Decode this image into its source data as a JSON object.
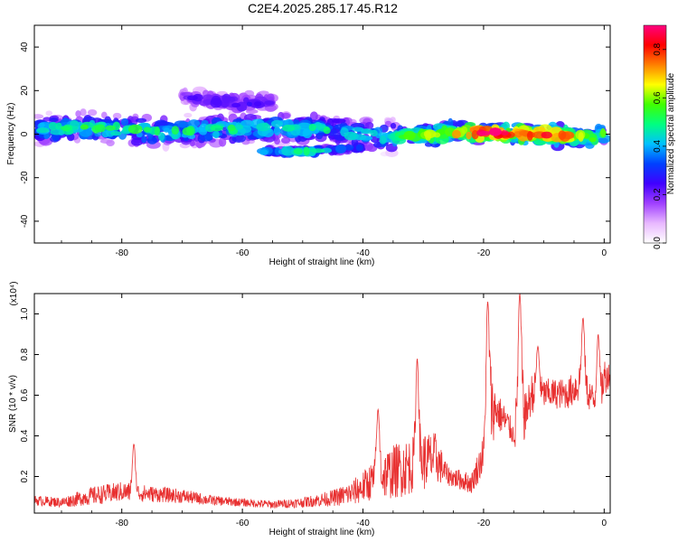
{
  "title": "C2E4.2025.285.17.45.R12",
  "chart_data": [
    {
      "type": "heatmap",
      "xlabel": "Height of straight line (km)",
      "ylabel": "Frequency (Hz)",
      "xlim": [
        -94.5,
        1
      ],
      "ylim": [
        -50,
        50
      ],
      "xticks": [
        -80,
        -60,
        -40,
        -20,
        0
      ],
      "yticks": [
        -40,
        -20,
        0,
        20,
        40
      ],
      "xtick_labels": [
        "-80",
        "-60",
        "-40",
        "-20",
        "0"
      ],
      "ytick_labels": [
        "-40",
        "-20",
        "0",
        "20",
        "40"
      ],
      "colorbar": {
        "label": "Normalized spectral amplitude",
        "range": [
          0,
          0.9
        ],
        "ticks": [
          0.0,
          0.2,
          0.4,
          0.6,
          0.8
        ],
        "tick_labels": [
          "0.0",
          "0.2",
          "0.4",
          "0.6",
          "0.8"
        ],
        "colormap": [
          "#ffffff",
          "#e8b8ff",
          "#a040ff",
          "#4000ff",
          "#0040ff",
          "#00c0ff",
          "#00ff80",
          "#40ff00",
          "#ffff00",
          "#ff8000",
          "#ff0000",
          "#ff0080"
        ]
      },
      "ridges": [
        {
          "name": "main band",
          "x": [
            -94,
            -85,
            -75,
            -65,
            -55,
            -45,
            -40,
            -35,
            -30,
            -25,
            -20,
            -15,
            -10,
            -5,
            -2,
            0
          ],
          "y": [
            2,
            3,
            1,
            2,
            3,
            2,
            0,
            -1,
            -0.5,
            0.5,
            1,
            0.5,
            0,
            -1,
            -2,
            1
          ],
          "spread_hz": 6,
          "amplitude": [
            0.45,
            0.5,
            0.5,
            0.5,
            0.45,
            0.45,
            0.45,
            0.5,
            0.55,
            0.65,
            0.85,
            0.75,
            0.75,
            0.65,
            0.55,
            0.5
          ]
        },
        {
          "name": "lower branch",
          "x": [
            -57,
            -50,
            -44,
            -40
          ],
          "y": [
            -8,
            -8,
            -7,
            -6
          ],
          "spread_hz": 2,
          "amplitude": [
            0.4,
            0.45,
            0.35,
            0.3
          ]
        },
        {
          "name": "upper scatter",
          "x": [
            -70,
            -60,
            -55
          ],
          "y": [
            17,
            14,
            15
          ],
          "spread_hz": 5,
          "amplitude": [
            0.2,
            0.25,
            0.2
          ]
        }
      ]
    },
    {
      "type": "line",
      "xlabel": "Height of straight line (km)",
      "ylabel": "SNR (10 * v/v)",
      "y_multiplier": "(x10⁴)",
      "xlim": [
        -94.5,
        1
      ],
      "ylim": [
        0.02,
        1.1
      ],
      "xticks": [
        -80,
        -60,
        -40,
        -20,
        0
      ],
      "yticks": [
        0.2,
        0.4,
        0.6,
        0.8,
        1.0
      ],
      "xtick_labels": [
        "-80",
        "-60",
        "-40",
        "-20",
        "0"
      ],
      "ytick_labels": [
        "0.2",
        "0.4",
        "0.6",
        "0.8",
        "1.0"
      ],
      "color": "#e83030",
      "envelope": {
        "x": [
          -94.5,
          -90,
          -85,
          -80,
          -75,
          -70,
          -65,
          -60,
          -55,
          -50,
          -45,
          -42,
          -40,
          -38,
          -36,
          -34,
          -32,
          -30,
          -28,
          -26,
          -24,
          -22,
          -20,
          -19,
          -18,
          -16,
          -15,
          -14,
          -13,
          -12,
          -10,
          -8,
          -6,
          -4,
          -2,
          -1,
          0,
          1
        ],
        "mean": [
          0.08,
          0.07,
          0.1,
          0.12,
          0.11,
          0.1,
          0.08,
          0.07,
          0.06,
          0.07,
          0.09,
          0.11,
          0.14,
          0.18,
          0.2,
          0.22,
          0.24,
          0.26,
          0.28,
          0.2,
          0.18,
          0.16,
          0.3,
          0.5,
          0.52,
          0.45,
          0.4,
          0.5,
          0.5,
          0.6,
          0.6,
          0.6,
          0.6,
          0.65,
          0.58,
          0.5,
          0.68,
          0.7
        ],
        "amp": [
          0.05,
          0.05,
          0.09,
          0.1,
          0.08,
          0.07,
          0.05,
          0.04,
          0.04,
          0.05,
          0.08,
          0.12,
          0.16,
          0.2,
          0.25,
          0.28,
          0.28,
          0.3,
          0.25,
          0.1,
          0.1,
          0.1,
          0.2,
          0.5,
          0.2,
          0.15,
          0.1,
          0.55,
          0.2,
          0.2,
          0.15,
          0.15,
          0.15,
          0.2,
          0.15,
          0.15,
          0.2,
          0.1
        ]
      },
      "peaks": [
        {
          "x": -78,
          "y": 0.36
        },
        {
          "x": -37.5,
          "y": 0.53
        },
        {
          "x": -31,
          "y": 0.78
        },
        {
          "x": -19.3,
          "y": 1.06
        },
        {
          "x": -14,
          "y": 1.1
        },
        {
          "x": -11,
          "y": 0.84
        },
        {
          "x": -3.5,
          "y": 0.98
        },
        {
          "x": -1,
          "y": 0.9
        }
      ]
    }
  ]
}
